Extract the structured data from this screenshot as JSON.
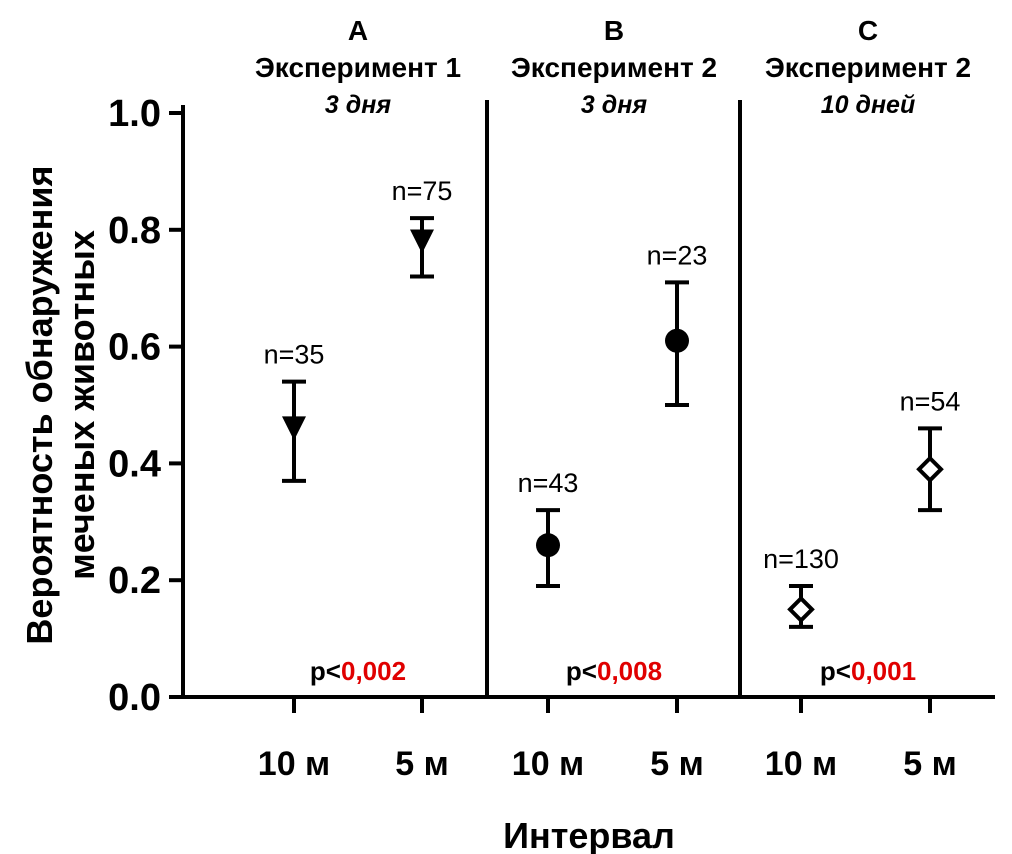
{
  "chart_data": {
    "type": "scatter",
    "xlabel": "Интервал",
    "ylabel_lines": [
      "Вероятность обнаружения",
      "меченых животных"
    ],
    "ylim": [
      0,
      1
    ],
    "yticks": [
      "0.0",
      "0.2",
      "0.4",
      "0.6",
      "0.8",
      "1.0"
    ],
    "categories": [
      "10 м",
      "5 м"
    ],
    "panels": [
      {
        "letter": "A",
        "experiment": "Эксперимент 1",
        "duration": "3 дня",
        "marker": "triangle-down",
        "p_prefix": "p<",
        "p_value": "0,002",
        "points": [
          {
            "x": "10 м",
            "y": 0.46,
            "lower": 0.37,
            "upper": 0.54,
            "n_label": "n=35"
          },
          {
            "x": "5 м",
            "y": 0.78,
            "lower": 0.72,
            "upper": 0.82,
            "n_label": "n=75"
          }
        ]
      },
      {
        "letter": "B",
        "experiment": "Эксперимент 2",
        "duration": "3 дня",
        "marker": "circle",
        "p_prefix": "p<",
        "p_value": "0,008",
        "points": [
          {
            "x": "10 м",
            "y": 0.26,
            "lower": 0.19,
            "upper": 0.32,
            "n_label": "n=43"
          },
          {
            "x": "5 м",
            "y": 0.61,
            "lower": 0.5,
            "upper": 0.71,
            "n_label": "n=23"
          }
        ]
      },
      {
        "letter": "C",
        "experiment": "Эксперимент 2",
        "duration": "10 дней",
        "marker": "diamond-open",
        "p_prefix": "p<",
        "p_value": "0,001",
        "points": [
          {
            "x": "10 м",
            "y": 0.15,
            "lower": 0.12,
            "upper": 0.19,
            "n_label": "n=130"
          },
          {
            "x": "5 м",
            "y": 0.39,
            "lower": 0.32,
            "upper": 0.46,
            "n_label": "n=54"
          }
        ]
      }
    ]
  }
}
